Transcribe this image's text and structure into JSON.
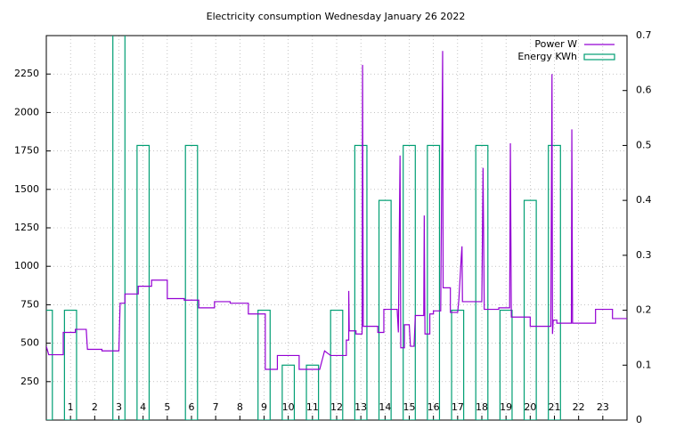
{
  "chart_data": {
    "type": "line",
    "title": "Electricity consumption Wednesday January 26 2022",
    "xlim": [
      0,
      24
    ],
    "xticks": [
      1,
      2,
      3,
      4,
      5,
      6,
      7,
      8,
      9,
      10,
      11,
      12,
      13,
      14,
      15,
      16,
      17,
      18,
      19,
      20,
      21,
      22,
      23
    ],
    "ylim": [
      0,
      2500
    ],
    "yticks": [
      250,
      500,
      750,
      1000,
      1250,
      1500,
      1750,
      2000,
      2250
    ],
    "y2lim": [
      0,
      0.7
    ],
    "y2ticks": [
      0,
      0.1,
      0.2,
      0.3,
      0.4,
      0.5,
      0.6,
      0.7
    ],
    "grid": true,
    "legend": "top-right",
    "series": [
      {
        "name": "Power W",
        "color": "#9400d3",
        "style": "line",
        "x": [
          0,
          0.1,
          0.7,
          0.7,
          1.2,
          1.2,
          1.65,
          1.7,
          2.3,
          2.3,
          3.0,
          3.05,
          3.25,
          3.25,
          3.8,
          3.8,
          4.35,
          4.35,
          5.0,
          5.0,
          5.7,
          5.7,
          6.3,
          6.3,
          6.95,
          6.95,
          7.6,
          7.6,
          8.35,
          8.35,
          9.05,
          9.05,
          9.55,
          9.55,
          10.45,
          10.45,
          11.3,
          11.5,
          11.75,
          12.4,
          12.4,
          12.5,
          12.5,
          12.52,
          12.8,
          12.8,
          13.05,
          13.07,
          13.1,
          13.7,
          13.7,
          13.95,
          13.95,
          14.5,
          14.55,
          14.62,
          14.65,
          14.8,
          14.8,
          15.0,
          15.05,
          15.2,
          15.25,
          15.6,
          15.62,
          15.65,
          15.85,
          15.85,
          16.0,
          16.0,
          16.3,
          16.38,
          16.4,
          16.7,
          16.7,
          17.0,
          17.05,
          17.15,
          17.18,
          17.2,
          18.0,
          18.05,
          18.1,
          18.7,
          18.7,
          19.15,
          19.18,
          19.22,
          20.0,
          20.0,
          20.85,
          20.9,
          20.92,
          20.95,
          21.1,
          21.1,
          21.7,
          21.72,
          21.75,
          22.7,
          22.7,
          23.4,
          23.4,
          24
        ],
        "values": [
          480,
          425,
          425,
          570,
          570,
          590,
          590,
          460,
          460,
          450,
          450,
          760,
          760,
          820,
          820,
          870,
          870,
          910,
          910,
          790,
          790,
          780,
          780,
          730,
          730,
          770,
          770,
          760,
          760,
          690,
          690,
          330,
          330,
          420,
          420,
          330,
          330,
          450,
          420,
          420,
          520,
          520,
          840,
          580,
          580,
          560,
          560,
          2310,
          610,
          610,
          570,
          570,
          720,
          720,
          570,
          1720,
          470,
          470,
          620,
          620,
          480,
          480,
          680,
          680,
          1330,
          560,
          560,
          690,
          690,
          710,
          710,
          2400,
          860,
          860,
          700,
          700,
          780,
          1060,
          1130,
          770,
          770,
          1640,
          720,
          720,
          730,
          730,
          1800,
          670,
          670,
          610,
          610,
          2250,
          560,
          650,
          650,
          630,
          630,
          1890,
          630,
          630,
          720,
          720,
          660,
          660
        ]
      },
      {
        "name": "Energy KWh",
        "color": "#009e73",
        "style": "boxes",
        "axis": "y2",
        "box_width": 0.5,
        "x": [
          0,
          1,
          2,
          3,
          4,
          5,
          6,
          7,
          8,
          9,
          10,
          11,
          12,
          13,
          14,
          15,
          16,
          17,
          18,
          19,
          20,
          21,
          22,
          23
        ],
        "values": [
          0.2,
          0.2,
          0,
          0.8,
          0.5,
          0,
          0.5,
          0,
          0,
          0.2,
          0.1,
          0.1,
          0.2,
          0.5,
          0.4,
          0.5,
          0.5,
          0.2,
          0.5,
          0.2,
          0.4,
          0.5,
          0,
          0
        ]
      }
    ]
  }
}
